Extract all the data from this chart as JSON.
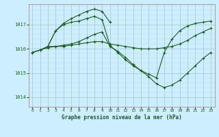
{
  "title": "Graphe pression niveau de la mer (hPa)",
  "bg_color": "#cceeff",
  "grid_color_major": "#aacccc",
  "grid_color_minor": "#bbdddd",
  "line_color": "#1e5c1e",
  "marker_color": "#1e5c1e",
  "xlim": [
    -0.5,
    23.5
  ],
  "ylim": [
    1013.6,
    1017.85
  ],
  "yticks": [
    1014,
    1015,
    1016,
    1017
  ],
  "xticks": [
    0,
    1,
    2,
    3,
    4,
    5,
    6,
    7,
    8,
    9,
    10,
    11,
    12,
    13,
    14,
    15,
    16,
    17,
    18,
    19,
    20,
    21,
    22,
    23
  ],
  "series": [
    {
      "x": [
        0,
        1,
        2,
        3,
        4,
        5,
        6,
        7,
        8,
        9,
        10,
        11,
        12,
        13,
        14,
        15,
        16,
        17,
        18,
        19,
        20,
        21,
        22,
        23
      ],
      "y": [
        1015.85,
        1015.95,
        1016.05,
        1016.1,
        1016.1,
        1016.15,
        1016.2,
        1016.25,
        1016.3,
        1016.3,
        1016.2,
        1016.15,
        1016.1,
        1016.05,
        1016.0,
        1016.0,
        1016.0,
        1016.05,
        1016.1,
        1016.2,
        1016.35,
        1016.55,
        1016.7,
        1016.85
      ]
    },
    {
      "x": [
        0,
        1,
        2,
        3,
        4,
        5,
        6,
        7,
        8,
        9,
        10,
        11,
        12,
        13,
        14,
        15,
        16,
        17,
        18,
        19,
        20,
        21,
        22,
        23
      ],
      "y": [
        1015.85,
        1015.95,
        1016.1,
        1016.1,
        1016.15,
        1016.2,
        1016.3,
        1016.45,
        1016.6,
        1016.7,
        1016.1,
        1015.9,
        1015.65,
        1015.35,
        1015.1,
        1014.85,
        1014.55,
        1014.4,
        1014.5,
        1014.7,
        1015.0,
        1015.3,
        1015.6,
        1015.85
      ]
    },
    {
      "x": [
        0,
        1,
        2,
        3,
        4,
        5,
        6,
        7,
        8,
        9,
        10,
        11,
        12,
        13,
        14,
        15,
        16,
        17,
        18,
        19,
        20,
        21,
        22,
        23
      ],
      "y": [
        1015.85,
        1015.95,
        1016.1,
        1016.75,
        1017.0,
        1017.1,
        1017.15,
        1017.25,
        1017.35,
        1017.2,
        1016.15,
        1015.85,
        1015.55,
        1015.3,
        1015.1,
        1014.95,
        1014.8,
        1015.85,
        1016.4,
        1016.75,
        1016.95,
        1017.05,
        1017.1,
        1017.15
      ]
    }
  ],
  "series_top": {
    "x": [
      2,
      3,
      4,
      5,
      6,
      7,
      8,
      9,
      10
    ],
    "y": [
      1016.1,
      1016.75,
      1017.05,
      1017.25,
      1017.4,
      1017.55,
      1017.65,
      1017.55,
      1017.1
    ]
  }
}
